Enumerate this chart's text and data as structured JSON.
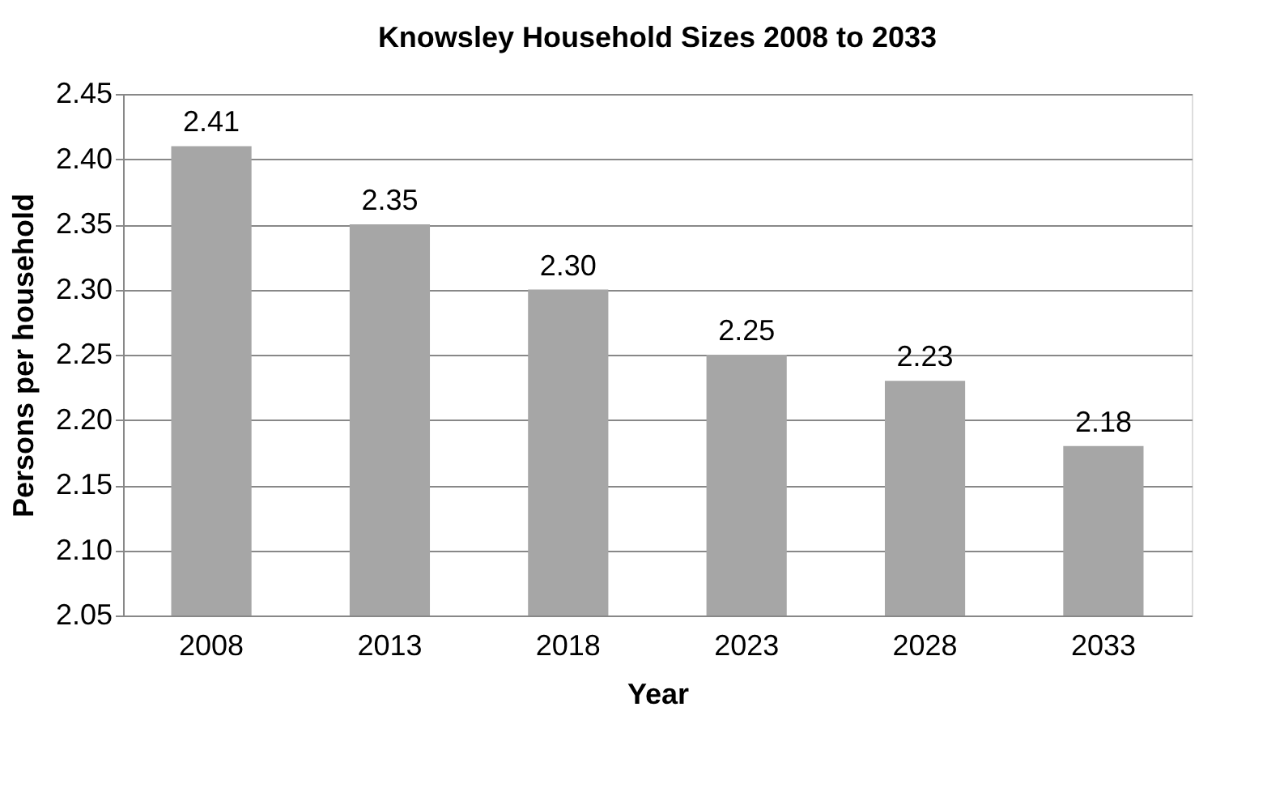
{
  "chart_data": {
    "type": "bar",
    "title": "Knowsley Household Sizes 2008 to 2033",
    "xlabel": "Year",
    "ylabel": "Persons per household",
    "categories": [
      "2008",
      "2013",
      "2018",
      "2023",
      "2028",
      "2033"
    ],
    "values": [
      2.41,
      2.35,
      2.3,
      2.25,
      2.23,
      2.18
    ],
    "color": "#a6a6a6",
    "value_labels": [
      "2.41",
      "2.35",
      "2.30",
      "2.25",
      "2.23",
      "2.18"
    ],
    "ylim": [
      2.05,
      2.45
    ],
    "yticks": [
      2.05,
      {
        "value": 2.1,
        "label": "2.10"
      },
      2.15,
      {
        "value": 2.2,
        "label": "2.20"
      },
      2.25,
      {
        "value": 2.3,
        "label": "2.30"
      },
      2.35,
      {
        "value": 2.4,
        "label": "2.40"
      },
      2.45
    ],
    "grid": "y"
  }
}
